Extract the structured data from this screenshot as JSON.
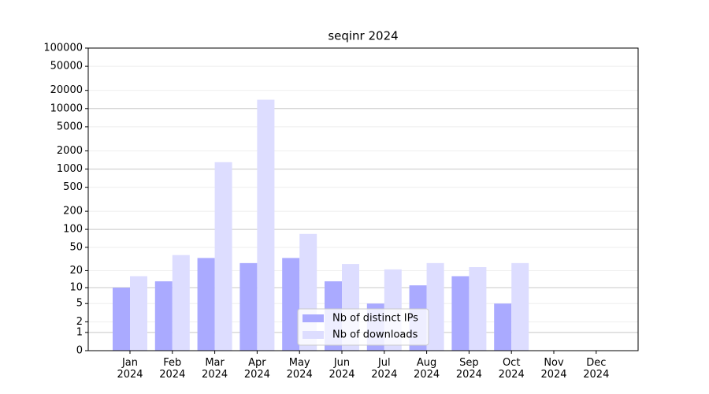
{
  "chart_data": {
    "type": "bar",
    "title": "seqinr 2024",
    "categories": [
      "Jan\n2024",
      "Feb\n2024",
      "Mar\n2024",
      "Apr\n2024",
      "May\n2024",
      "Jun\n2024",
      "Jul\n2024",
      "Aug\n2024",
      "Sep\n2024",
      "Oct\n2024",
      "Nov\n2024",
      "Dec\n2024"
    ],
    "series": [
      {
        "name": "Nb of distinct IPs",
        "color": "#aaaaff",
        "values": [
          10,
          13,
          33,
          27,
          33,
          13,
          5,
          11,
          16,
          5,
          0,
          0
        ]
      },
      {
        "name": "Nb of downloads",
        "color": "#ddddff",
        "values": [
          16,
          37,
          1300,
          14000,
          84,
          26,
          21,
          27,
          23,
          27,
          0,
          0
        ]
      }
    ],
    "yscale": "log1p",
    "ylim": [
      0,
      100000
    ],
    "yticks": [
      0,
      1,
      2,
      5,
      10,
      20,
      50,
      100,
      200,
      500,
      1000,
      2000,
      5000,
      10000,
      20000,
      50000,
      100000
    ],
    "grid": true,
    "legend": "lower center"
  }
}
